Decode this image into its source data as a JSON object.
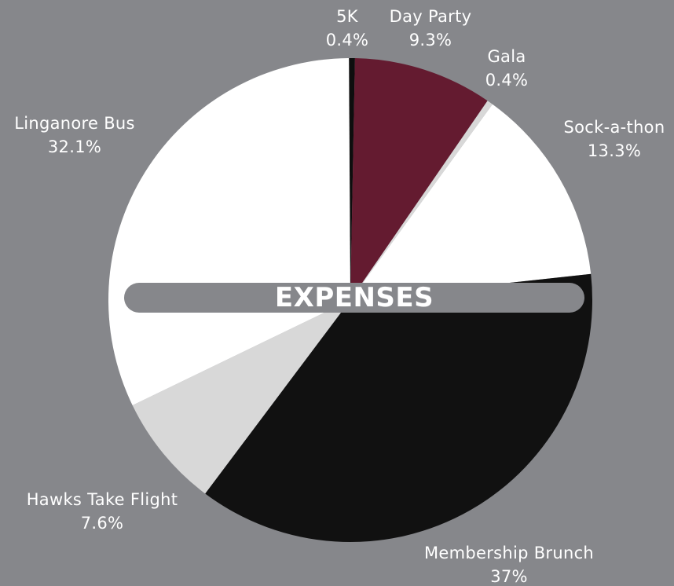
{
  "chart_data": {
    "type": "pie",
    "title": "EXPENSES",
    "slices": [
      {
        "label": "5K",
        "value_label": "0.4%",
        "value": 0.4,
        "color": "#0e0e0e"
      },
      {
        "label": "Day Party",
        "value_label": "9.3%",
        "value": 9.3,
        "color": "#641b30"
      },
      {
        "label": "Gala",
        "value_label": "0.4%",
        "value": 0.4,
        "color": "#d8d8d8"
      },
      {
        "label": "Sock-a-thon",
        "value_label": "13.3%",
        "value": 13.3,
        "color": "#ffffff"
      },
      {
        "label": "Membership Brunch",
        "value_label": "37%",
        "value": 37.0,
        "color": "#111111"
      },
      {
        "label": "Hawks Take Flight",
        "value_label": "7.6%",
        "value": 7.6,
        "color": "#d8d8d8"
      },
      {
        "label": "Linganore Bus",
        "value_label": "32.1%",
        "value": 32.1,
        "color": "#ffffff"
      }
    ]
  },
  "colors": {
    "background": "#86878b",
    "label_text": "#ffffff"
  }
}
